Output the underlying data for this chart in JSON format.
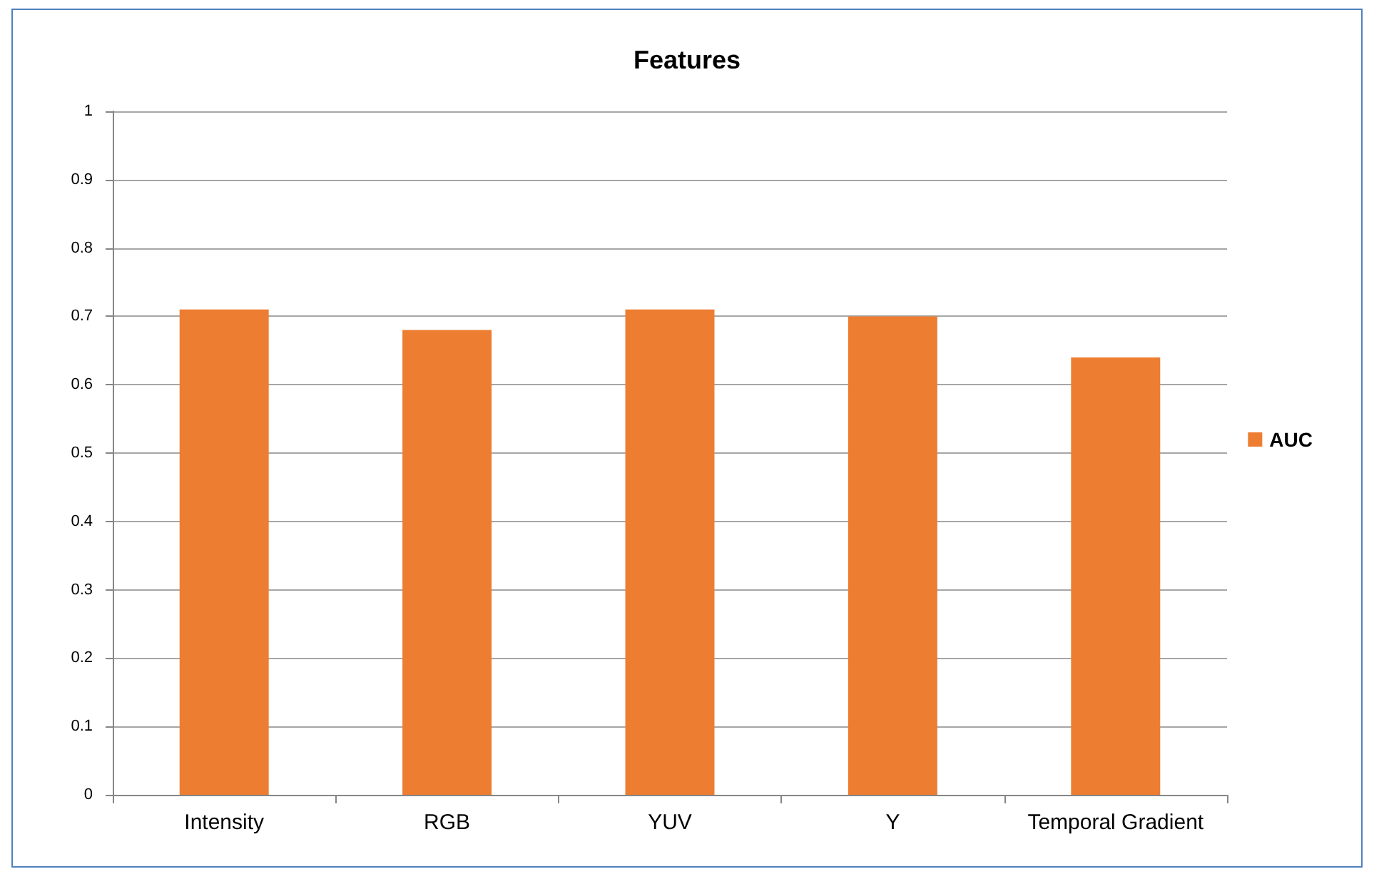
{
  "chart_data": {
    "type": "bar",
    "title": "Features",
    "categories": [
      "Intensity",
      "RGB",
      "YUV",
      "Y",
      "Temporal Gradient"
    ],
    "series": [
      {
        "name": "AUC",
        "color": "#ed7d31",
        "values": [
          0.71,
          0.68,
          0.71,
          0.7,
          0.64
        ]
      }
    ],
    "ylim": [
      0,
      1
    ],
    "yticks": [
      0,
      0.1,
      0.2,
      0.3,
      0.4,
      0.5,
      0.6,
      0.7,
      0.8,
      0.9,
      1
    ],
    "grid": "y",
    "legend": "right"
  }
}
